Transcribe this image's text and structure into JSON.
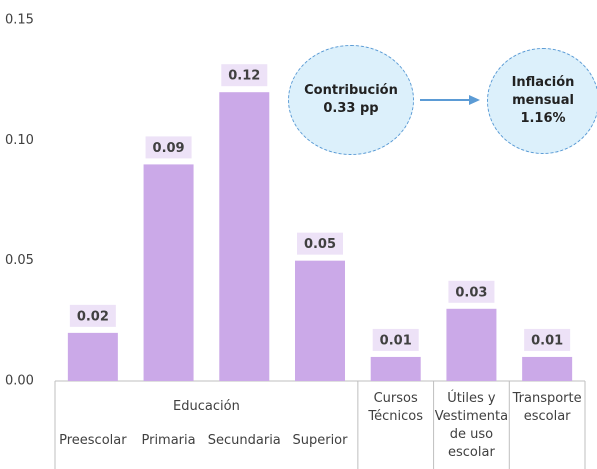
{
  "chart_data": {
    "type": "bar",
    "categories": [
      "Preescolar",
      "Primaria",
      "Secundaria",
      "Superior",
      "Cursos Técnicos",
      "Útiles y Vestimenta de uso escolar",
      "Transporte escolar"
    ],
    "group": {
      "label": "Educación",
      "count": 4
    },
    "values": [
      0.02,
      0.09,
      0.12,
      0.05,
      0.01,
      0.03,
      0.01
    ],
    "color": "#cba9e8",
    "label_box_color": "#ede2f7",
    "ylim": [
      0,
      0.15
    ],
    "yticks": [
      {
        "value": 0,
        "label": "0.00"
      },
      {
        "value": 0.05,
        "label": "0.05"
      },
      {
        "value": 0.1,
        "label": "0.10"
      },
      {
        "value": 0.15,
        "label": "0.15"
      }
    ],
    "grid": false,
    "annotations": [
      "Contribución 0.33 pp",
      "Inflación mensual 1.16%"
    ]
  }
}
